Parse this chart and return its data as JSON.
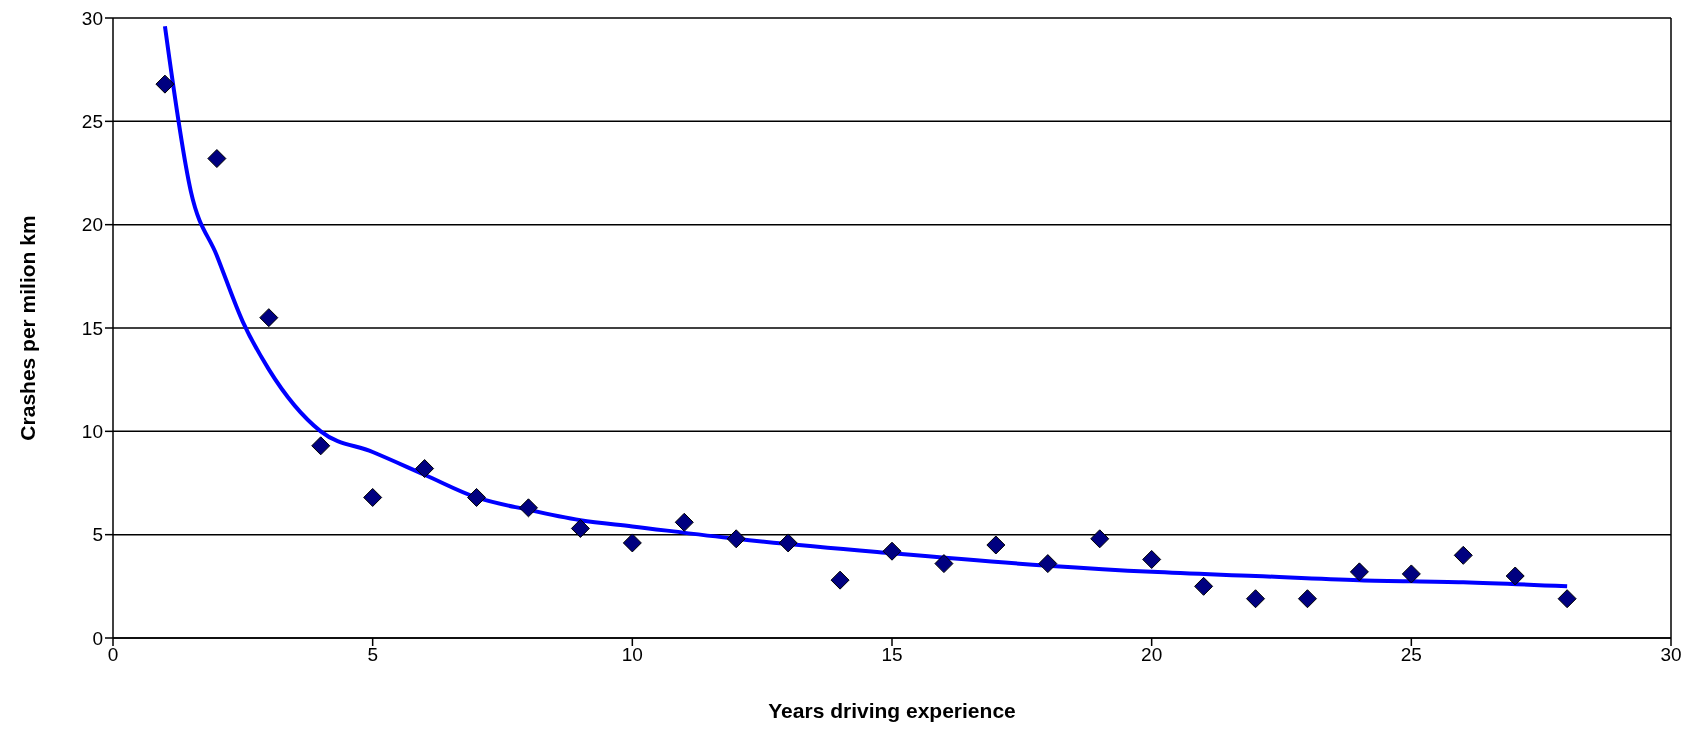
{
  "chart_data": {
    "type": "scatter",
    "xlabel": "Years driving experience",
    "ylabel": "Crashes per milion km",
    "xlim": [
      0,
      30
    ],
    "xticks": [
      0,
      5,
      10,
      15,
      20,
      25,
      30
    ],
    "ylim": [
      0,
      30
    ],
    "yticks": [
      0,
      5,
      10,
      15,
      20,
      25,
      30
    ],
    "grid": "y",
    "legend": false,
    "series": [
      {
        "marker": "diamond",
        "color": "#000080",
        "x": [
          1,
          2,
          3,
          4,
          5,
          6,
          7,
          8,
          9,
          10,
          11,
          12,
          13,
          14,
          15,
          16,
          17,
          18,
          19,
          20,
          21,
          22,
          23,
          24,
          25,
          26,
          27,
          28
        ],
        "values": [
          26.8,
          23.2,
          15.5,
          9.3,
          6.8,
          8.2,
          6.8,
          6.3,
          5.3,
          4.6,
          5.6,
          4.8,
          4.6,
          2.8,
          4.2,
          3.6,
          4.5,
          3.6,
          4.8,
          3.8,
          2.5,
          1.9,
          1.9,
          3.2,
          3.1,
          4.0,
          3.0,
          1.9
        ]
      },
      {
        "type": "line",
        "marker": "none",
        "line_style": "solid",
        "color": "#0000ff",
        "x": [
          1,
          1.5,
          2,
          2.5,
          3,
          4,
          5,
          6,
          7,
          8,
          9,
          10,
          12,
          15,
          18,
          20,
          22,
          24,
          26,
          28
        ],
        "values": [
          29.6,
          21.6,
          18.5,
          15.3,
          13.0,
          10.0,
          9.0,
          7.9,
          6.8,
          6.2,
          5.7,
          5.4,
          4.8,
          4.1,
          3.5,
          3.2,
          3.0,
          2.8,
          2.7,
          2.5
        ]
      }
    ]
  }
}
